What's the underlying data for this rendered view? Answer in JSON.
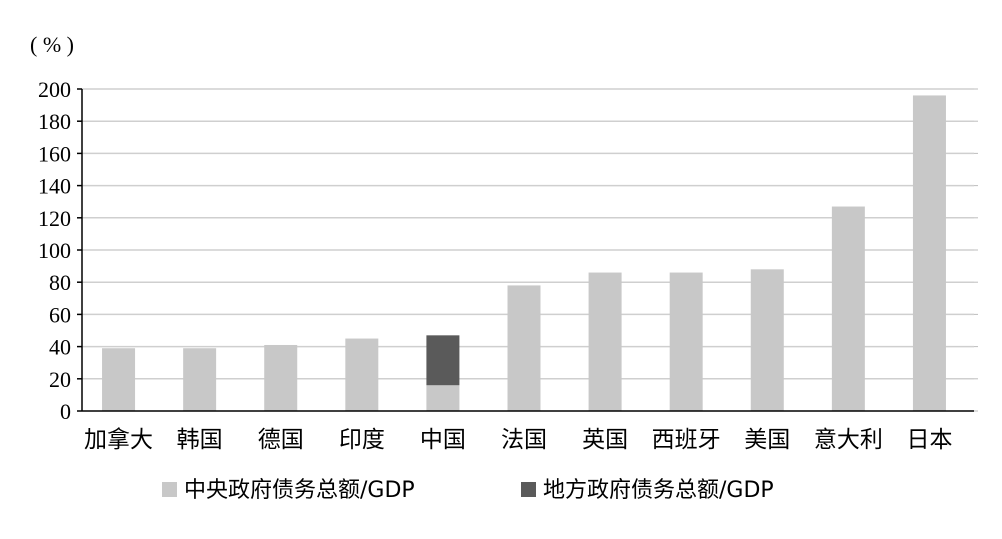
{
  "chart_data": {
    "type": "bar",
    "stacked": true,
    "unit_label": "( % )",
    "title": "",
    "xlabel": "",
    "ylabel": "",
    "categories": [
      "加拿大",
      "韩国",
      "德国",
      "印度",
      "中国",
      "法国",
      "英国",
      "西班牙",
      "美国",
      "意大利",
      "日本"
    ],
    "series": [
      {
        "name": "中央政府债务总额/GDP",
        "color": "#c8c8c8",
        "values": [
          39,
          39,
          41,
          45,
          16,
          78,
          86,
          86,
          88,
          127,
          196
        ]
      },
      {
        "name": "地方政府债务总额/GDP",
        "color": "#5a5a5a",
        "values": [
          0,
          0,
          0,
          0,
          31,
          0,
          0,
          0,
          0,
          0,
          0
        ]
      }
    ],
    "ylim": [
      0,
      200
    ],
    "yticks": [
      0,
      20,
      40,
      60,
      80,
      100,
      120,
      140,
      160,
      180,
      200
    ],
    "grid": true,
    "legend_position": "bottom"
  }
}
